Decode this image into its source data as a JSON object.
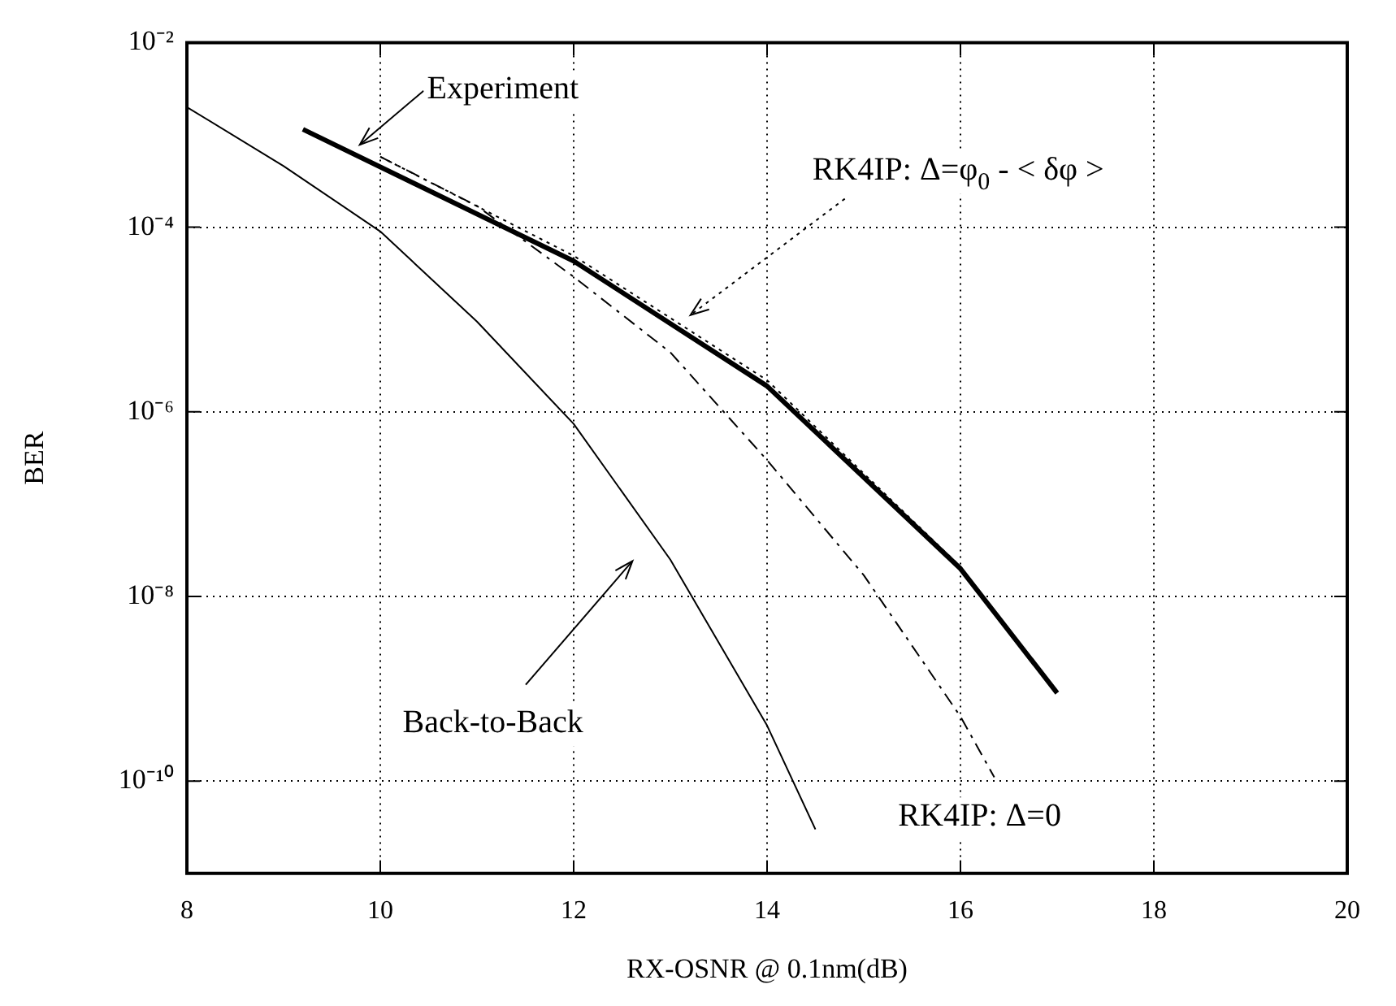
{
  "chart_data": {
    "type": "line",
    "xlabel": "RX-OSNR @ 0.1nm(dB)",
    "ylabel": "BER",
    "log": "y",
    "grid": true,
    "legend": false,
    "marker": "none",
    "xlim": [
      8,
      20
    ],
    "xticks": [
      8,
      10,
      12,
      14,
      16,
      18,
      20
    ],
    "ylim": [
      1e-11,
      0.01
    ],
    "yticks": [
      {
        "value": 1e-10,
        "label": "10⁻¹⁰"
      },
      {
        "value": 1e-08,
        "label": "10⁻⁸"
      },
      {
        "value": 1e-06,
        "label": "10⁻⁶"
      },
      {
        "value": 0.0001,
        "label": "10⁻⁴"
      },
      {
        "value": 0.01,
        "label": "10⁻²"
      }
    ],
    "series": [
      {
        "color": "#000000",
        "line_style": "solid",
        "x": [
          9.2,
          12,
          14,
          16,
          17
        ],
        "values": [
          0.00115,
          4.3e-05,
          1.9e-06,
          2e-08,
          9e-10
        ]
      },
      {
        "color": "#000000",
        "line_style": "dotted",
        "x": [
          10,
          12,
          14,
          16,
          17
        ],
        "values": [
          0.00058,
          4.9e-05,
          2.2e-06,
          2.1e-08,
          9e-10
        ]
      },
      {
        "color": "#000000",
        "line_style": "dashed",
        "x": [
          10,
          11,
          12,
          13,
          14,
          15,
          16,
          16.35
        ],
        "values": [
          0.00058,
          0.00017,
          2.9e-05,
          4.4e-06,
          3e-07,
          1.7e-08,
          5e-10,
          1.1e-10
        ]
      },
      {
        "color": "#000000",
        "line_style": "solid",
        "x": [
          8,
          9,
          10,
          11,
          12,
          13,
          14,
          14.5
        ],
        "values": [
          0.002,
          0.00046,
          9e-05,
          9.5e-06,
          7.4e-07,
          2.5e-08,
          4e-10,
          3e-11
        ]
      }
    ],
    "annotations": [
      "Experiment",
      "RK4IP: Δ=φ$_{0}$ - < δφ >",
      "Back-to-Back",
      "RK4IP: Δ=0"
    ]
  }
}
